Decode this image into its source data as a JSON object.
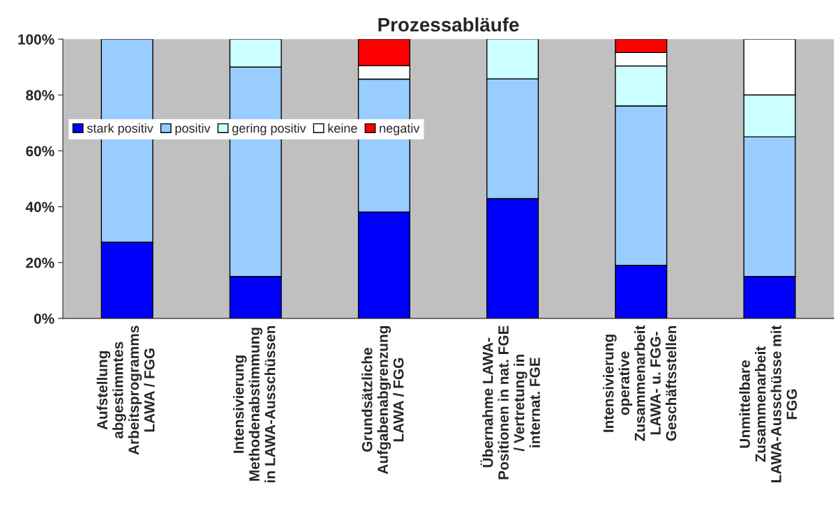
{
  "chart_data": {
    "type": "bar",
    "title": "Prozessabläufe",
    "stacked": true,
    "categories": [
      "Aufstellung\nabgestimmtes\nArbeitsprogramms\nLAWA / FGG",
      "Intensivierung\nMethodenabstimmung\nin LAWA-Ausschüssen",
      "Grundsätzliche\nAufgabenabgrenzung\nLAWA / FGG",
      "Übernahme LAWA-\nPositionen in nat. FGE\n/ Vertretung in\ninternat. FGE",
      "Intensivierung\noperative\nZusammenarbeit\nLAWA- u. FGG-\nGeschäftsstellen",
      "Unmittelbare\nZusammenarbeit\nLAWA-Ausschüsse mit\nFGG"
    ],
    "series": [
      {
        "name": "stark positiv",
        "color": "#0000ff",
        "values": [
          27.3,
          15,
          38.1,
          42.9,
          19.0,
          15
        ]
      },
      {
        "name": "positiv",
        "color": "#99ccff",
        "values": [
          72.7,
          75,
          47.6,
          42.9,
          57.1,
          50
        ]
      },
      {
        "name": "gering positiv",
        "color": "#ccffff",
        "values": [
          0,
          10,
          0,
          14.3,
          14.3,
          15
        ]
      },
      {
        "name": "keine",
        "color": "#ffffff",
        "values": [
          0,
          0,
          4.8,
          0,
          4.8,
          20
        ]
      },
      {
        "name": "negativ",
        "color": "#ff0000",
        "values": [
          0,
          0,
          9.5,
          0,
          4.8,
          0
        ]
      }
    ],
    "ylim": [
      0,
      100
    ],
    "yticks": [
      {
        "value": 0,
        "label": "0%"
      },
      {
        "value": 20,
        "label": "20%"
      },
      {
        "value": 40,
        "label": "40%"
      },
      {
        "value": 60,
        "label": "60%"
      },
      {
        "value": 80,
        "label": "80%"
      },
      {
        "value": 100,
        "label": "100%"
      }
    ],
    "grid": false,
    "legend": "top left"
  }
}
